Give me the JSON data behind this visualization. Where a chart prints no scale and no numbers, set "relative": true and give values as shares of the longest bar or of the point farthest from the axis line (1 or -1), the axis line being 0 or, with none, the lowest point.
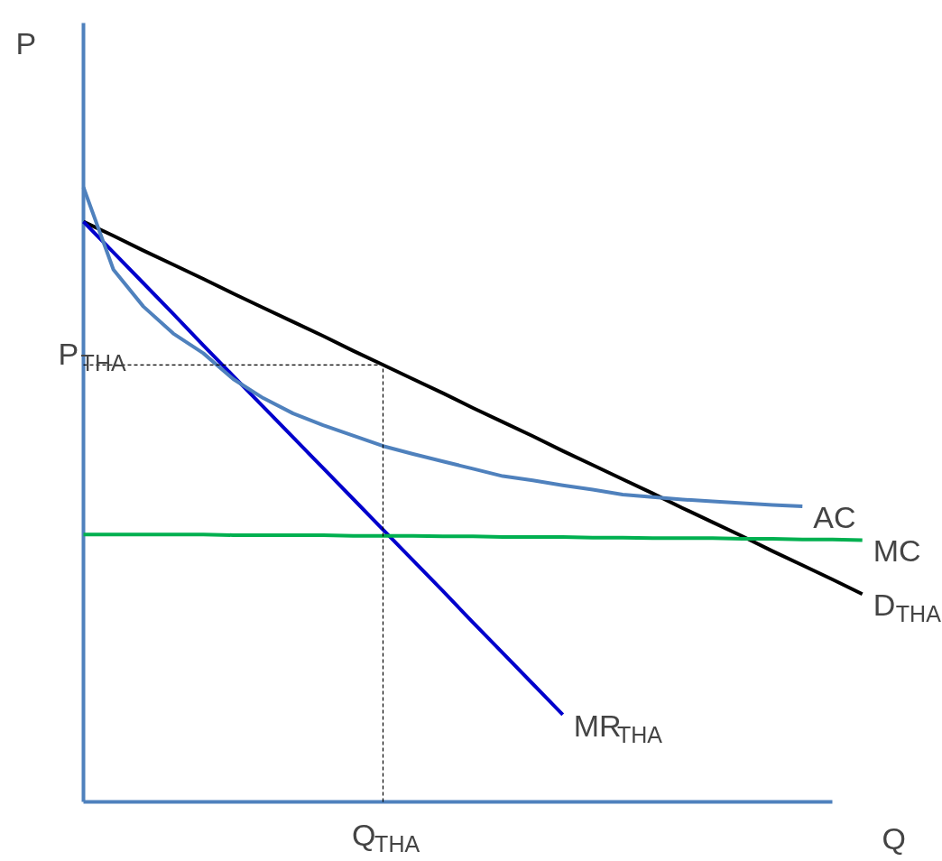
{
  "chart_data": {
    "type": "line",
    "relative": true,
    "xlabel": "Q",
    "ylabel": "P",
    "categories": [
      null,
      null,
      null,
      null,
      null,
      null,
      null,
      null,
      null,
      null,
      null,
      null,
      null,
      null,
      null,
      null,
      null,
      null,
      null,
      null,
      null,
      null,
      null,
      null,
      null,
      null,
      null
    ],
    "series": [
      {
        "name": "D$_{THA}$",
        "color": "#000000",
        "values": [
          0.944,
          0.921,
          0.897,
          0.874,
          0.851,
          0.827,
          0.804,
          0.781,
          0.758,
          0.734,
          0.711,
          0.688,
          0.665,
          0.641,
          0.618,
          0.595,
          0.571,
          0.548,
          0.525,
          0.502,
          0.478,
          0.455,
          0.432,
          0.408,
          0.385,
          0.362,
          0.338
        ]
      },
      {
        "name": "MR$_{THA}$",
        "color": "#0000cc",
        "values": [
          0.944,
          0.894,
          0.844,
          0.794,
          0.743,
          0.693,
          0.643,
          0.593,
          0.543,
          0.493,
          0.443,
          0.393,
          0.343,
          0.292,
          0.242,
          0.192,
          0.142,
          null,
          null,
          null,
          null,
          null,
          null,
          null,
          null,
          null,
          null
        ]
      },
      {
        "name": "AC",
        "color": "#4f81bd",
        "values": [
          1.0,
          0.866,
          0.806,
          0.762,
          0.73,
          0.688,
          0.657,
          0.632,
          0.613,
          0.596,
          0.579,
          0.566,
          0.554,
          0.542,
          0.53,
          0.523,
          0.515,
          0.508,
          0.5,
          0.496,
          0.492,
          0.489,
          0.486,
          0.483,
          0.481,
          null,
          null
        ]
      },
      {
        "name": "MC",
        "color": "#00b050",
        "values": [
          0.435,
          0.435,
          0.435,
          0.435,
          0.435,
          0.434,
          0.434,
          0.434,
          0.434,
          0.433,
          0.433,
          0.433,
          0.432,
          0.432,
          0.431,
          0.431,
          0.431,
          0.43,
          0.43,
          0.429,
          0.429,
          0.429,
          0.428,
          0.428,
          0.427,
          0.427,
          0.426
        ]
      }
    ],
    "ref_lines": [
      {
        "axis": "y",
        "value": 0.711,
        "label": "P$_{THA}$",
        "color": "#000000",
        "line_style": "dashed"
      }
    ],
    "annotations": [
      "Q$_{THA}$"
    ]
  }
}
